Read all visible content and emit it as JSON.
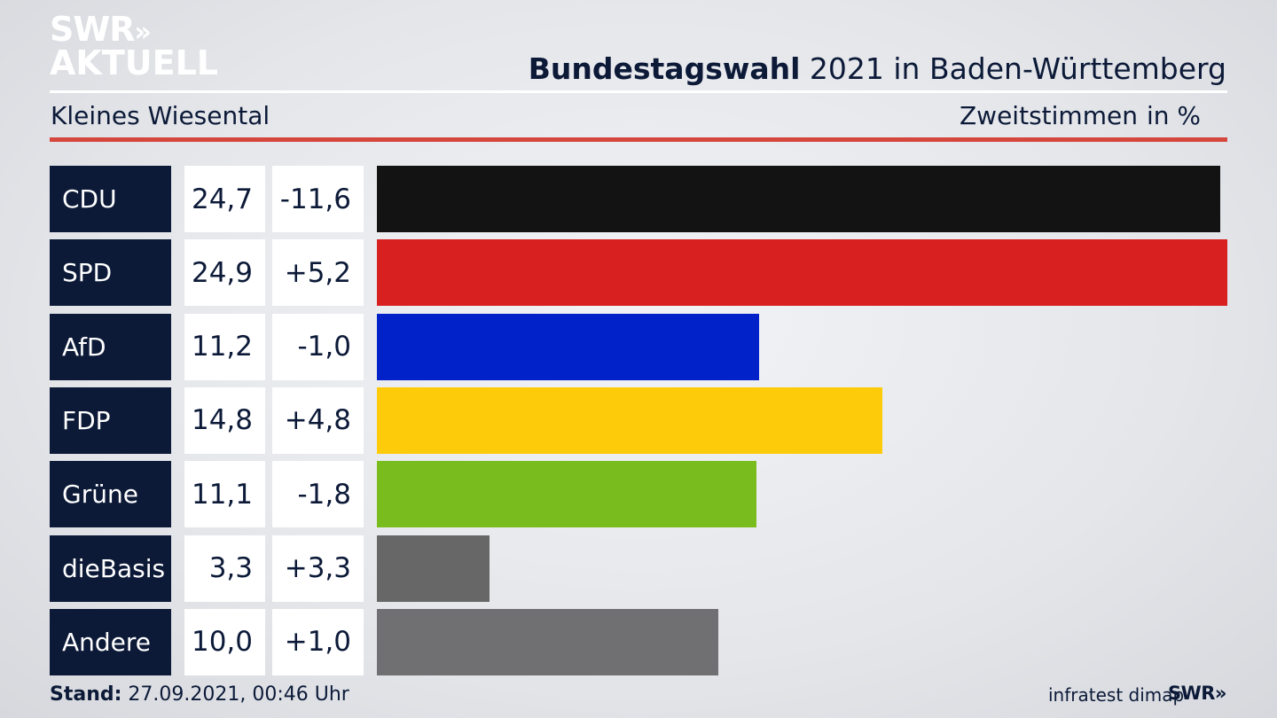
{
  "logo": {
    "line1": "SWR",
    "chevrons": "»",
    "line2": "AKTUELL"
  },
  "header": {
    "title_bold": "Bundestagswahl",
    "title_rest": " 2021 in Baden-Württemberg",
    "region": "Kleines Wiesental",
    "metric": "Zweitstimmen",
    "unit": "in %"
  },
  "chart_data": {
    "type": "bar",
    "categories": [
      "CDU",
      "SPD",
      "AfD",
      "FDP",
      "Grüne",
      "dieBasis",
      "Andere"
    ],
    "values": [
      24.7,
      24.9,
      11.2,
      14.8,
      11.1,
      3.3,
      10.0
    ],
    "values_label": [
      "24,7",
      "24,9",
      "11,2",
      "14,8",
      "11,1",
      "3,3",
      "10,0"
    ],
    "diff_label": [
      "-11,6",
      "+5,2",
      "-1,0",
      "+4,8",
      "-1,8",
      "+3,3",
      "+1,0"
    ],
    "colors": [
      "#131313",
      "#d82020",
      "#0022c8",
      "#fdcb0a",
      "#79bc1d",
      "#676767",
      "#707072"
    ],
    "orientation": "horizontal"
  },
  "footer": {
    "stand_label": "Stand:",
    "stand_value": " 27.09.2021, 00:46 Uhr",
    "source": "infratest dimap",
    "brand": "SWR»"
  }
}
